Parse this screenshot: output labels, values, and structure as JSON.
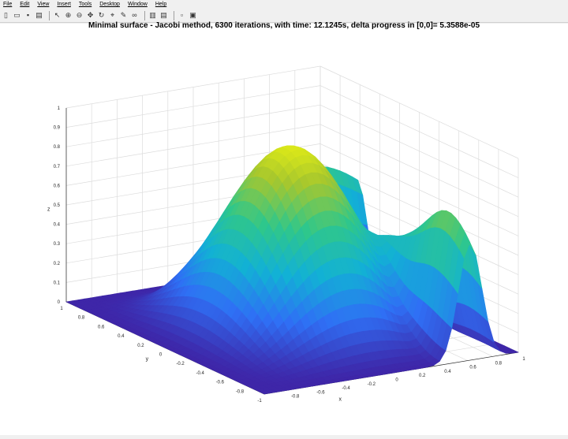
{
  "menu": [
    "File",
    "Edit",
    "View",
    "Insert",
    "Tools",
    "Desktop",
    "Window",
    "Help"
  ],
  "toolbar_icons": [
    "new-file-icon",
    "open-file-icon",
    "save-icon",
    "print-icon",
    "pointer-icon",
    "zoom-in-icon",
    "zoom-out-icon",
    "pan-icon",
    "rotate-icon",
    "data-cursor-icon",
    "brush-icon",
    "link-icon",
    "colorbar-icon",
    "legend-icon",
    "hide-plot-tools-icon",
    "show-plot-tools-icon"
  ],
  "figure": {
    "title": "Minimal surface - Jacobi method, 6300 iterations, with time: 12.1245s, delta progress in [0,0]= 5.3588e-05"
  },
  "chart_data": {
    "type": "surface",
    "title": "Minimal surface - Jacobi method, 6300 iterations, with time: 12.1245s, delta progress in [0,0]= 5.3588e-05",
    "xlabel": "x",
    "ylabel": "y",
    "zlabel": "z",
    "xlim": [
      -1,
      1
    ],
    "ylim": [
      -1,
      1
    ],
    "zlim": [
      0,
      1
    ],
    "x_ticks": [
      "1",
      "0.8",
      "0.6",
      "0.4",
      "0.2",
      "0",
      "-0.2",
      "-0.4",
      "-0.6",
      "-0.8",
      "-1"
    ],
    "y_ticks": [
      "-0.8",
      "-0.6",
      "-0.4",
      "-0.2",
      "0",
      "0.2",
      "0.4",
      "0.6",
      "0.8",
      "1"
    ],
    "z_ticks": [
      "0",
      "0.1",
      "0.2",
      "0.3",
      "0.4",
      "0.5",
      "0.6",
      "0.7",
      "0.8",
      "0.9",
      "1"
    ],
    "grid": true,
    "colormap": "parula",
    "colors": [
      "#3e26a8",
      "#2f6ff5",
      "#12b1d5",
      "#2fc78b",
      "#a7c72d",
      "#f9fb0e"
    ]
  }
}
